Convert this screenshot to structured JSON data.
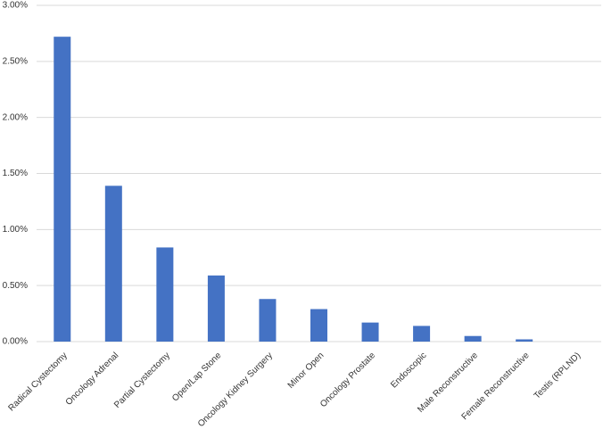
{
  "chart_data": {
    "type": "bar",
    "categories": [
      "Radical Cystectomy",
      "Oncology Adrenal",
      "Partial Cystectomy",
      "Open/Lap Stone",
      "Oncology Kidney Surgery",
      "Minor Open",
      "Oncology Prostate",
      "Endoscopic",
      "Male Reconstructive",
      "Female Reconstructive",
      "Testis (RPLND)"
    ],
    "values": [
      2.72,
      1.39,
      0.84,
      0.59,
      0.38,
      0.29,
      0.17,
      0.14,
      0.05,
      0.02,
      0
    ],
    "color": "#4472c4",
    "ylim": [
      0,
      3
    ],
    "yticks": [
      {
        "value": 0,
        "label": "0.00%"
      },
      {
        "value": 0.5,
        "label": "0.50%"
      },
      {
        "value": 1,
        "label": "1.00%"
      },
      {
        "value": 1.5,
        "label": "1.50%"
      },
      {
        "value": 2,
        "label": "2.00%"
      },
      {
        "value": 2.5,
        "label": "2.50%"
      },
      {
        "value": 3,
        "label": "3.00%"
      }
    ],
    "grid": true
  }
}
